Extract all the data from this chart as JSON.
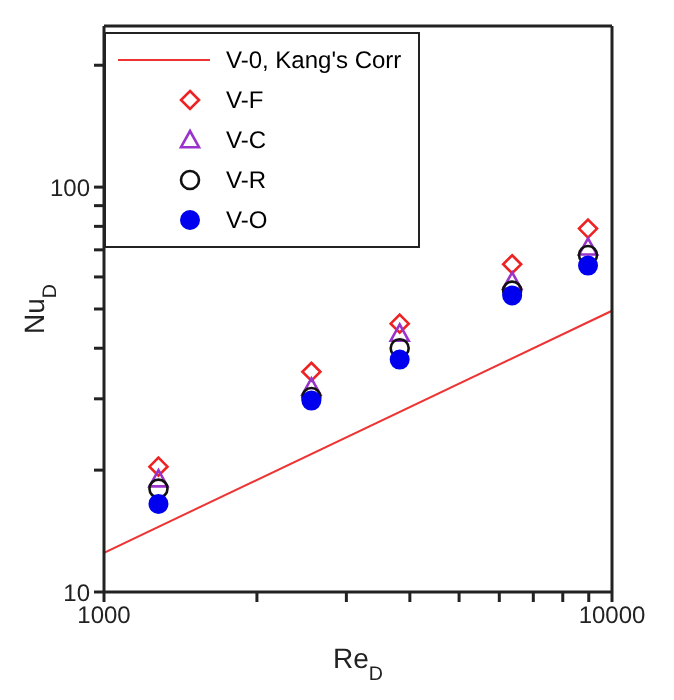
{
  "chart_data": {
    "type": "scatter",
    "xlabel": "Re$_{D}$",
    "ylabel": "Nu$_{D}$",
    "log": "xy",
    "xlim": [
      1000,
      10000
    ],
    "ylim": [
      10,
      250
    ],
    "xticks": [
      1000,
      {
        "value": 2000,
        "label": null
      },
      {
        "value": 3000,
        "label": null
      },
      {
        "value": 4000,
        "label": null
      },
      {
        "value": 5000,
        "label": null
      },
      {
        "value": 6000,
        "label": null
      },
      {
        "value": 7000,
        "label": null
      },
      {
        "value": 8000,
        "label": null
      },
      {
        "value": 9000,
        "label": null
      },
      10000
    ],
    "yticks": [
      10,
      {
        "value": 20,
        "label": null
      },
      {
        "value": 30,
        "label": null
      },
      {
        "value": 40,
        "label": null
      },
      {
        "value": 50,
        "label": null
      },
      {
        "value": 60,
        "label": null
      },
      {
        "value": 70,
        "label": null
      },
      {
        "value": 80,
        "label": null
      },
      {
        "value": 90,
        "label": null
      },
      100,
      {
        "value": 200,
        "label": null
      }
    ],
    "x": [
      1280,
      2560,
      3820,
      6360,
      8970
    ],
    "grid": false,
    "legend": "top left",
    "series": [
      {
        "name": "V-0, Kang's Corr",
        "type": "line",
        "color": "#ee3333",
        "x": [
          1000,
          10000
        ],
        "values": [
          12.5,
          49.5
        ],
        "marker": "none",
        "line_style": "solid"
      },
      {
        "name": "V-F",
        "color": "#ee2222",
        "marker": "diamond",
        "values": [
          20.4,
          35,
          46,
          64.5,
          79
        ]
      },
      {
        "name": "V-C",
        "color": "#9933cc",
        "marker": "triangle",
        "values": [
          19,
          32,
          43.5,
          58.5,
          71
        ]
      },
      {
        "name": "V-R",
        "color": "#111111",
        "marker": "circle",
        "values": [
          18,
          30.3,
          40,
          55.5,
          68
        ]
      },
      {
        "name": "V-O",
        "color": "#0000ee",
        "marker": "filled-circle",
        "values": [
          16.5,
          29.7,
          37.5,
          54,
          64
        ]
      }
    ]
  }
}
